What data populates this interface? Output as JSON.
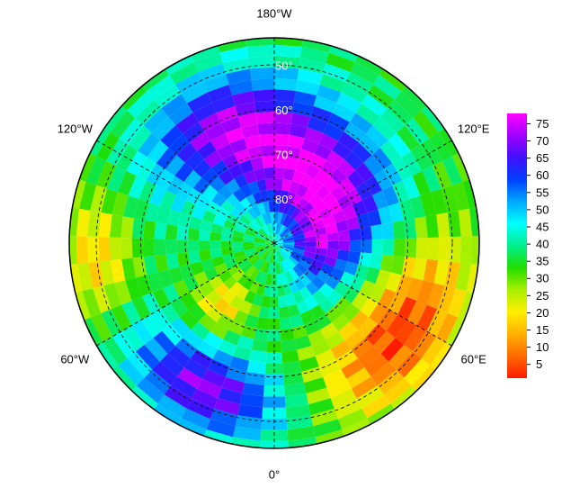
{
  "map": {
    "longitudes": [
      {
        "value": -180,
        "label": "180°W"
      },
      {
        "value": -120,
        "label": "120°W"
      },
      {
        "value": 120,
        "label": "120°E"
      },
      {
        "value": -60,
        "label": "60°W"
      },
      {
        "value": 60,
        "label": "60°E"
      },
      {
        "value": 0,
        "label": "0°"
      }
    ],
    "latitudes": [
      {
        "value": 50,
        "label": "50°"
      },
      {
        "value": 60,
        "label": "60°"
      },
      {
        "value": 70,
        "label": "70°"
      },
      {
        "value": 80,
        "label": "80°"
      }
    ]
  },
  "colorbar": {
    "range": [
      1,
      78
    ],
    "ticks": [
      5,
      10,
      15,
      20,
      25,
      30,
      35,
      40,
      45,
      50,
      55,
      60,
      65,
      70,
      75
    ],
    "colors": [
      "#ff1a00",
      "#ff6a00",
      "#ffb000",
      "#ffee00",
      "#a8f000",
      "#22dd00",
      "#00f08c",
      "#00ffff",
      "#00a8ff",
      "#0040ff",
      "#4010ff",
      "#a000ff",
      "#ff00ff"
    ]
  }
}
